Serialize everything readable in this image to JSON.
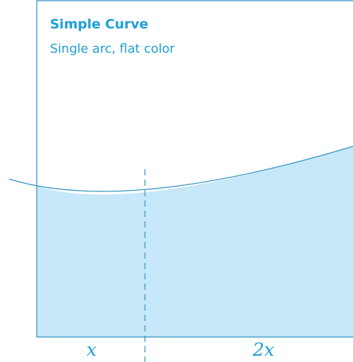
{
  "card": {
    "title": "Simple Curve",
    "subtitle": "Single arc, flat color"
  },
  "dimensions": {
    "left_label": "x",
    "right_label": "2x"
  },
  "colors": {
    "accent": "#1e9fd6",
    "fill": "#c6e8f9",
    "frame": "#2a8fbd"
  }
}
